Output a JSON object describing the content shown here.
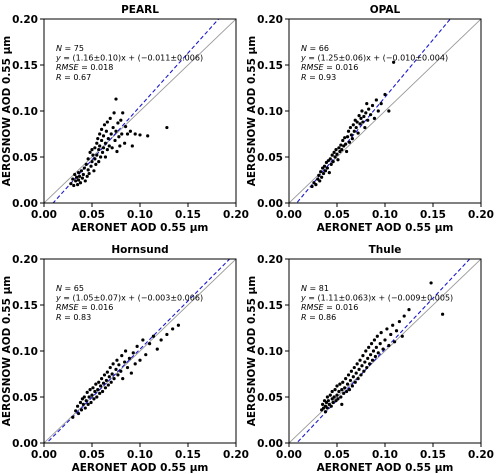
{
  "chart_data": [
    {
      "type": "scatter",
      "title": "PEARL",
      "xlabel": "AERONET AOD 0.55 μm",
      "ylabel": "AEROSNOW AOD 0.55 μm",
      "xlim": [
        0,
        0.2
      ],
      "ylim": [
        0,
        0.2
      ],
      "xticks": [
        "0.00",
        "0.05",
        "0.10",
        "0.15",
        "0.20"
      ],
      "yticks": [
        "0.00",
        "0.05",
        "0.10",
        "0.15",
        "0.20"
      ],
      "stats": {
        "n_label": "N",
        "n_value": " = 75",
        "fit_lhs": "y",
        "fit_rhs": " = (1.16±0.10)x + (−0.011±0.006)",
        "rmse_label": "RMSE",
        "rmse_value": " = 0.018",
        "r_label": "R",
        "r_value": " = 0.67"
      },
      "fit": {
        "slope": 1.16,
        "intercept": -0.011
      },
      "points": [
        [
          0.028,
          0.021
        ],
        [
          0.03,
          0.026
        ],
        [
          0.031,
          0.019
        ],
        [
          0.032,
          0.031
        ],
        [
          0.033,
          0.024
        ],
        [
          0.034,
          0.028
        ],
        [
          0.035,
          0.02
        ],
        [
          0.036,
          0.033
        ],
        [
          0.036,
          0.025
        ],
        [
          0.037,
          0.029
        ],
        [
          0.038,
          0.022
        ],
        [
          0.039,
          0.035
        ],
        [
          0.04,
          0.027
        ],
        [
          0.041,
          0.031
        ],
        [
          0.042,
          0.038
        ],
        [
          0.043,
          0.024
        ],
        [
          0.044,
          0.042
        ],
        [
          0.045,
          0.029
        ],
        [
          0.046,
          0.036
        ],
        [
          0.046,
          0.048
        ],
        [
          0.047,
          0.032
        ],
        [
          0.048,
          0.055
        ],
        [
          0.049,
          0.04
        ],
        [
          0.05,
          0.058
        ],
        [
          0.05,
          0.045
        ],
        [
          0.051,
          0.052
        ],
        [
          0.052,
          0.035
        ],
        [
          0.053,
          0.06
        ],
        [
          0.053,
          0.048
        ],
        [
          0.054,
          0.042
        ],
        [
          0.055,
          0.065
        ],
        [
          0.055,
          0.052
        ],
        [
          0.056,
          0.07
        ],
        [
          0.057,
          0.045
        ],
        [
          0.057,
          0.058
        ],
        [
          0.058,
          0.075
        ],
        [
          0.058,
          0.062
        ],
        [
          0.059,
          0.05
        ],
        [
          0.06,
          0.068
        ],
        [
          0.06,
          0.08
        ],
        [
          0.061,
          0.055
        ],
        [
          0.062,
          0.073
        ],
        [
          0.062,
          0.06
        ],
        [
          0.063,
          0.085
        ],
        [
          0.064,
          0.065
        ],
        [
          0.064,
          0.05
        ],
        [
          0.065,
          0.078
        ],
        [
          0.066,
          0.058
        ],
        [
          0.066,
          0.088
        ],
        [
          0.067,
          0.07
        ],
        [
          0.068,
          0.062
        ],
        [
          0.069,
          0.092
        ],
        [
          0.07,
          0.075
        ],
        [
          0.071,
          0.06
        ],
        [
          0.072,
          0.082
        ],
        [
          0.073,
          0.098
        ],
        [
          0.074,
          0.068
        ],
        [
          0.075,
          0.113
        ],
        [
          0.075,
          0.078
        ],
        [
          0.076,
          0.056
        ],
        [
          0.077,
          0.087
        ],
        [
          0.078,
          0.072
        ],
        [
          0.079,
          0.062
        ],
        [
          0.08,
          0.09
        ],
        [
          0.081,
          0.075
        ],
        [
          0.082,
          0.098
        ],
        [
          0.084,
          0.065
        ],
        [
          0.085,
          0.083
        ],
        [
          0.087,
          0.075
        ],
        [
          0.09,
          0.078
        ],
        [
          0.092,
          0.062
        ],
        [
          0.095,
          0.075
        ],
        [
          0.1,
          0.074
        ],
        [
          0.108,
          0.073
        ],
        [
          0.128,
          0.082
        ]
      ]
    },
    {
      "type": "scatter",
      "title": "OPAL",
      "xlabel": "AERONET AOD 0.55 μm",
      "ylabel": "AEROSNOW AOD 0.55 μm",
      "xlim": [
        0,
        0.2
      ],
      "ylim": [
        0,
        0.2
      ],
      "xticks": [
        "0.00",
        "0.05",
        "0.10",
        "0.15",
        "0.20"
      ],
      "yticks": [
        "0.00",
        "0.05",
        "0.10",
        "0.15",
        "0.20"
      ],
      "stats": {
        "n_label": "N",
        "n_value": " = 66",
        "fit_lhs": "y",
        "fit_rhs": " = (1.25±0.06)x + (−0.010±0.004)",
        "rmse_label": "RMSE",
        "rmse_value": " = 0.016",
        "r_label": "R",
        "r_value": " = 0.93"
      },
      "fit": {
        "slope": 1.25,
        "intercept": -0.01
      },
      "points": [
        [
          0.024,
          0.018
        ],
        [
          0.026,
          0.022
        ],
        [
          0.028,
          0.02
        ],
        [
          0.03,
          0.026
        ],
        [
          0.031,
          0.03
        ],
        [
          0.032,
          0.024
        ],
        [
          0.033,
          0.034
        ],
        [
          0.034,
          0.028
        ],
        [
          0.035,
          0.038
        ],
        [
          0.036,
          0.032
        ],
        [
          0.037,
          0.04
        ],
        [
          0.038,
          0.035
        ],
        [
          0.039,
          0.044
        ],
        [
          0.04,
          0.038
        ],
        [
          0.041,
          0.046
        ],
        [
          0.042,
          0.033
        ],
        [
          0.043,
          0.048
        ],
        [
          0.044,
          0.042
        ],
        [
          0.045,
          0.052
        ],
        [
          0.046,
          0.045
        ],
        [
          0.047,
          0.055
        ],
        [
          0.048,
          0.05
        ],
        [
          0.049,
          0.058
        ],
        [
          0.05,
          0.053
        ],
        [
          0.051,
          0.047
        ],
        [
          0.052,
          0.06
        ],
        [
          0.053,
          0.056
        ],
        [
          0.054,
          0.063
        ],
        [
          0.055,
          0.058
        ],
        [
          0.056,
          0.068
        ],
        [
          0.057,
          0.062
        ],
        [
          0.058,
          0.071
        ],
        [
          0.059,
          0.064
        ],
        [
          0.06,
          0.056
        ],
        [
          0.061,
          0.072
        ],
        [
          0.062,
          0.078
        ],
        [
          0.063,
          0.066
        ],
        [
          0.064,
          0.082
        ],
        [
          0.065,
          0.074
        ],
        [
          0.066,
          0.07
        ],
        [
          0.067,
          0.085
        ],
        [
          0.068,
          0.078
        ],
        [
          0.069,
          0.09
        ],
        [
          0.07,
          0.082
        ],
        [
          0.071,
          0.088
        ],
        [
          0.072,
          0.076
        ],
        [
          0.073,
          0.095
        ],
        [
          0.074,
          0.086
        ],
        [
          0.075,
          0.092
        ],
        [
          0.076,
          0.1
        ],
        [
          0.077,
          0.088
        ],
        [
          0.078,
          0.094
        ],
        [
          0.079,
          0.082
        ],
        [
          0.08,
          0.098
        ],
        [
          0.081,
          0.108
        ],
        [
          0.082,
          0.09
        ],
        [
          0.083,
          0.102
        ],
        [
          0.085,
          0.096
        ],
        [
          0.087,
          0.106
        ],
        [
          0.089,
          0.092
        ],
        [
          0.091,
          0.112
        ],
        [
          0.093,
          0.1
        ],
        [
          0.096,
          0.108
        ],
        [
          0.1,
          0.118
        ],
        [
          0.104,
          0.1
        ],
        [
          0.109,
          0.153
        ]
      ]
    },
    {
      "type": "scatter",
      "title": "Hornsund",
      "xlabel": "AERONET AOD 0.55 μm",
      "ylabel": "AEROSNOW AOD 0.55 μm",
      "xlim": [
        0,
        0.2
      ],
      "ylim": [
        0,
        0.2
      ],
      "xticks": [
        "0.00",
        "0.05",
        "0.10",
        "0.15",
        "0.20"
      ],
      "yticks": [
        "0.00",
        "0.05",
        "0.10",
        "0.15",
        "0.20"
      ],
      "stats": {
        "n_label": "N",
        "n_value": " = 65",
        "fit_lhs": "y",
        "fit_rhs": " = (1.05±0.07)x + (−0.003±0.006)",
        "rmse_label": "RMSE",
        "rmse_value": " = 0.016",
        "r_label": "R",
        "r_value": " = 0.83"
      },
      "fit": {
        "slope": 1.05,
        "intercept": -0.003
      },
      "points": [
        [
          0.03,
          0.028
        ],
        [
          0.033,
          0.035
        ],
        [
          0.035,
          0.04
        ],
        [
          0.036,
          0.032
        ],
        [
          0.038,
          0.044
        ],
        [
          0.039,
          0.036
        ],
        [
          0.04,
          0.048
        ],
        [
          0.041,
          0.042
        ],
        [
          0.042,
          0.05
        ],
        [
          0.043,
          0.038
        ],
        [
          0.044,
          0.046
        ],
        [
          0.045,
          0.055
        ],
        [
          0.046,
          0.042
        ],
        [
          0.047,
          0.05
        ],
        [
          0.048,
          0.058
        ],
        [
          0.049,
          0.044
        ],
        [
          0.05,
          0.052
        ],
        [
          0.051,
          0.06
        ],
        [
          0.052,
          0.048
        ],
        [
          0.053,
          0.056
        ],
        [
          0.054,
          0.064
        ],
        [
          0.055,
          0.05
        ],
        [
          0.056,
          0.058
        ],
        [
          0.057,
          0.066
        ],
        [
          0.058,
          0.054
        ],
        [
          0.059,
          0.062
        ],
        [
          0.06,
          0.07
        ],
        [
          0.061,
          0.056
        ],
        [
          0.062,
          0.065
        ],
        [
          0.063,
          0.074
        ],
        [
          0.064,
          0.06
        ],
        [
          0.065,
          0.068
        ],
        [
          0.066,
          0.077
        ],
        [
          0.067,
          0.063
        ],
        [
          0.068,
          0.072
        ],
        [
          0.069,
          0.082
        ],
        [
          0.07,
          0.066
        ],
        [
          0.071,
          0.075
        ],
        [
          0.072,
          0.086
        ],
        [
          0.073,
          0.07
        ],
        [
          0.075,
          0.08
        ],
        [
          0.076,
          0.09
        ],
        [
          0.077,
          0.074
        ],
        [
          0.078,
          0.085
        ],
        [
          0.08,
          0.078
        ],
        [
          0.081,
          0.095
        ],
        [
          0.082,
          0.07
        ],
        [
          0.084,
          0.088
        ],
        [
          0.085,
          0.1
        ],
        [
          0.087,
          0.082
        ],
        [
          0.089,
          0.092
        ],
        [
          0.091,
          0.076
        ],
        [
          0.093,
          0.098
        ],
        [
          0.095,
          0.086
        ],
        [
          0.097,
          0.105
        ],
        [
          0.1,
          0.09
        ],
        [
          0.103,
          0.112
        ],
        [
          0.106,
          0.096
        ],
        [
          0.11,
          0.108
        ],
        [
          0.114,
          0.116
        ],
        [
          0.118,
          0.102
        ],
        [
          0.122,
          0.112
        ],
        [
          0.128,
          0.118
        ],
        [
          0.134,
          0.124
        ],
        [
          0.14,
          0.128
        ]
      ]
    },
    {
      "type": "scatter",
      "title": "Thule",
      "xlabel": "AERONET AOD 0.55 μm",
      "ylabel": "AEROSNOW AOD 0.55 μm",
      "xlim": [
        0,
        0.2
      ],
      "ylim": [
        0,
        0.2
      ],
      "xticks": [
        "0.00",
        "0.05",
        "0.10",
        "0.15",
        "0.20"
      ],
      "yticks": [
        "0.00",
        "0.05",
        "0.10",
        "0.15",
        "0.20"
      ],
      "stats": {
        "n_label": "N",
        "n_value": " = 81",
        "fit_lhs": "y",
        "fit_rhs": " = (1.11±0.063)x + (−0.009±0.005)",
        "rmse_label": "RMSE",
        "rmse_value": " = 0.016",
        "r_label": "R",
        "r_value": " = 0.86"
      },
      "fit": {
        "slope": 1.11,
        "intercept": -0.009
      },
      "points": [
        [
          0.034,
          0.036
        ],
        [
          0.035,
          0.042
        ],
        [
          0.036,
          0.038
        ],
        [
          0.037,
          0.046
        ],
        [
          0.038,
          0.04
        ],
        [
          0.038,
          0.034
        ],
        [
          0.039,
          0.044
        ],
        [
          0.04,
          0.05
        ],
        [
          0.04,
          0.038
        ],
        [
          0.041,
          0.046
        ],
        [
          0.042,
          0.042
        ],
        [
          0.043,
          0.052
        ],
        [
          0.044,
          0.04
        ],
        [
          0.045,
          0.048
        ],
        [
          0.045,
          0.056
        ],
        [
          0.046,
          0.044
        ],
        [
          0.047,
          0.05
        ],
        [
          0.048,
          0.058
        ],
        [
          0.049,
          0.046
        ],
        [
          0.05,
          0.052
        ],
        [
          0.05,
          0.062
        ],
        [
          0.051,
          0.048
        ],
        [
          0.052,
          0.056
        ],
        [
          0.053,
          0.064
        ],
        [
          0.054,
          0.05
        ],
        [
          0.055,
          0.058
        ],
        [
          0.055,
          0.042
        ],
        [
          0.056,
          0.066
        ],
        [
          0.057,
          0.054
        ],
        [
          0.058,
          0.06
        ],
        [
          0.059,
          0.07
        ],
        [
          0.06,
          0.056
        ],
        [
          0.061,
          0.064
        ],
        [
          0.062,
          0.074
        ],
        [
          0.063,
          0.058
        ],
        [
          0.064,
          0.068
        ],
        [
          0.065,
          0.078
        ],
        [
          0.066,
          0.062
        ],
        [
          0.067,
          0.072
        ],
        [
          0.068,
          0.082
        ],
        [
          0.069,
          0.066
        ],
        [
          0.07,
          0.076
        ],
        [
          0.071,
          0.086
        ],
        [
          0.072,
          0.07
        ],
        [
          0.073,
          0.08
        ],
        [
          0.074,
          0.09
        ],
        [
          0.075,
          0.074
        ],
        [
          0.076,
          0.084
        ],
        [
          0.077,
          0.095
        ],
        [
          0.078,
          0.078
        ],
        [
          0.079,
          0.088
        ],
        [
          0.08,
          0.1
        ],
        [
          0.081,
          0.082
        ],
        [
          0.082,
          0.092
        ],
        [
          0.083,
          0.104
        ],
        [
          0.084,
          0.086
        ],
        [
          0.085,
          0.096
        ],
        [
          0.086,
          0.108
        ],
        [
          0.087,
          0.09
        ],
        [
          0.088,
          0.1
        ],
        [
          0.089,
          0.112
        ],
        [
          0.09,
          0.094
        ],
        [
          0.091,
          0.104
        ],
        [
          0.092,
          0.116
        ],
        [
          0.093,
          0.098
        ],
        [
          0.095,
          0.108
        ],
        [
          0.096,
          0.12
        ],
        [
          0.098,
          0.102
        ],
        [
          0.1,
          0.112
        ],
        [
          0.102,
          0.124
        ],
        [
          0.104,
          0.106
        ],
        [
          0.106,
          0.118
        ],
        [
          0.108,
          0.128
        ],
        [
          0.11,
          0.11
        ],
        [
          0.112,
          0.122
        ],
        [
          0.115,
          0.132
        ],
        [
          0.118,
          0.116
        ],
        [
          0.12,
          0.138
        ],
        [
          0.125,
          0.145
        ],
        [
          0.148,
          0.174
        ],
        [
          0.16,
          0.14
        ]
      ]
    }
  ]
}
